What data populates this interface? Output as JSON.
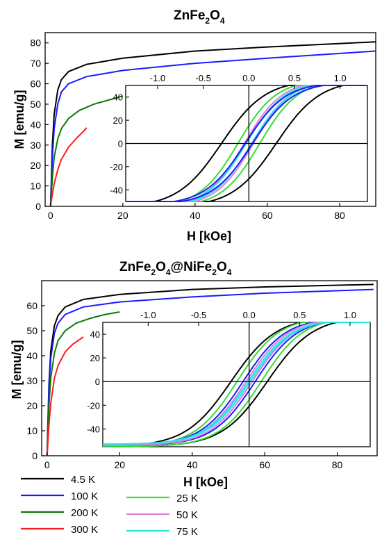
{
  "colors": {
    "4.5 K": "#000000",
    "100 K": "#1a1aff",
    "200 K": "#0a7a0a",
    "300 K": "#ff1a1a",
    "25 K": "#33dd33",
    "50 K": "#e27de2",
    "75 K": "#22e5e5"
  },
  "legend": {
    "col1": [
      "4.5 K",
      "100 K",
      "200 K",
      "300 K"
    ],
    "col2": [
      "25 K",
      "50 K",
      "75 K"
    ]
  },
  "chart_data": [
    {
      "type": "line",
      "title_main": "ZnFe",
      "title_parts": [
        "ZnFe",
        "2",
        "O",
        "4"
      ],
      "xlabel": "H [kOe]",
      "ylabel": "M [emu/g]",
      "xlim": [
        -1.5,
        90
      ],
      "ylim": [
        0,
        85
      ],
      "xticks": [
        0,
        20,
        40,
        60,
        80
      ],
      "yticks": [
        0,
        10,
        20,
        30,
        40,
        50,
        60,
        70,
        80
      ],
      "series": [
        {
          "name": "4.5 K",
          "x": [
            0,
            0.5,
            1,
            2,
            3,
            5,
            10,
            20,
            40,
            60,
            90
          ],
          "y": [
            0,
            30,
            45,
            57,
            62,
            66,
            69.5,
            72.5,
            76,
            78,
            80.5
          ]
        },
        {
          "name": "100 K",
          "x": [
            0,
            0.5,
            1,
            2,
            3,
            5,
            10,
            20,
            40,
            60,
            90
          ],
          "y": [
            0,
            24,
            38,
            50,
            56,
            60,
            63.5,
            66.5,
            70,
            72.5,
            76
          ]
        },
        {
          "name": "200 K",
          "x": [
            0,
            0.5,
            1,
            2,
            3,
            5,
            8,
            12,
            16,
            20
          ],
          "y": [
            0,
            14,
            24,
            33,
            38,
            43,
            47,
            50,
            52,
            54
          ]
        },
        {
          "name": "300 K",
          "x": [
            0,
            0.5,
            1,
            2,
            3,
            5,
            7,
            9,
            10
          ],
          "y": [
            0,
            6,
            11,
            18,
            23,
            29,
            33,
            36.5,
            38.5
          ]
        }
      ],
      "inset": {
        "xlim": [
          -1.35,
          1.3
        ],
        "ylim": [
          -50,
          50
        ],
        "xticks": [
          -1.0,
          -0.5,
          0.0,
          0.5,
          1.0
        ],
        "yticks": [
          -40,
          -20,
          0,
          20,
          40
        ],
        "loops": [
          {
            "name": "4.5 K",
            "Hc": 0.3,
            "Ms": 55,
            "w": 0.48
          },
          {
            "name": "25 K",
            "Hc": 0.12,
            "Ms": 55,
            "w": 0.42
          },
          {
            "name": "50 K",
            "Hc": 0.05,
            "Ms": 55,
            "w": 0.42
          },
          {
            "name": "75 K",
            "Hc": 0.03,
            "Ms": 54,
            "w": 0.42
          },
          {
            "name": "100 K",
            "Hc": 0.04,
            "Ms": 53,
            "w": 0.44
          }
        ]
      }
    },
    {
      "type": "line",
      "title_parts": [
        "ZnFe",
        "2",
        "O",
        "4",
        "@NiFe",
        "2",
        "O",
        "4"
      ],
      "xlabel": "H [kOe]",
      "ylabel": "M [emu/g]",
      "xlim": [
        -1.5,
        91
      ],
      "ylim": [
        0,
        70
      ],
      "xticks": [
        0,
        20,
        40,
        60,
        80
      ],
      "yticks": [
        0,
        10,
        20,
        30,
        40,
        50,
        60
      ],
      "series": [
        {
          "name": "4.5 K",
          "x": [
            0,
            0.5,
            1,
            2,
            3,
            5,
            10,
            20,
            40,
            60,
            90
          ],
          "y": [
            0,
            28,
            42,
            52,
            56,
            59.5,
            62.5,
            64.5,
            66.5,
            67.5,
            68.5
          ]
        },
        {
          "name": "100 K",
          "x": [
            0,
            0.5,
            1,
            2,
            3,
            5,
            10,
            20,
            40,
            60,
            90
          ],
          "y": [
            0,
            26,
            39,
            49,
            53,
            56.5,
            59.5,
            61.5,
            63.5,
            65,
            66.5
          ]
        },
        {
          "name": "200 K",
          "x": [
            0,
            0.5,
            1,
            2,
            3,
            5,
            8,
            12,
            16,
            20
          ],
          "y": [
            0,
            20,
            31,
            41,
            46,
            50,
            53,
            55,
            56.5,
            57.5
          ]
        },
        {
          "name": "300 K",
          "x": [
            0,
            0.5,
            1,
            2,
            3,
            5,
            7,
            9,
            10
          ],
          "y": [
            0,
            12,
            21,
            31,
            36,
            41.5,
            44.5,
            46.5,
            47.5
          ]
        }
      ],
      "inset": {
        "xlim": [
          -1.45,
          1.2
        ],
        "ylim": [
          -55,
          50
        ],
        "xticks": [
          -1.0,
          -0.5,
          0.0,
          0.5,
          1.0
        ],
        "yticks": [
          -40,
          -20,
          0,
          20,
          40
        ],
        "loops": [
          {
            "name": "4.5 K",
            "Hc": 0.18,
            "Ms": 55,
            "w": 0.45
          },
          {
            "name": "25 K",
            "Hc": 0.12,
            "Ms": 55,
            "w": 0.42
          },
          {
            "name": "100 K",
            "Hc": 0.06,
            "Ms": 54,
            "w": 0.42
          },
          {
            "name": "50 K",
            "Hc": 0.03,
            "Ms": 54,
            "w": 0.42
          },
          {
            "name": "75 K",
            "Hc": 0.01,
            "Ms": 53,
            "w": 0.42
          }
        ]
      }
    }
  ]
}
